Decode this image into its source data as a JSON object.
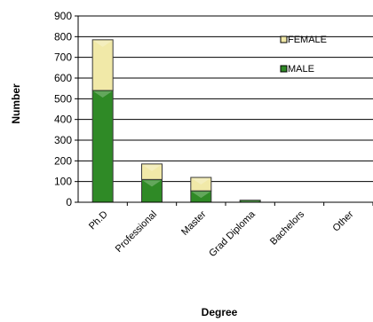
{
  "chart_data": {
    "type": "bar",
    "stacked": true,
    "categories": [
      "Ph.D",
      "Professional",
      "Master",
      "Grad Diploma",
      "Bachelors",
      "Other"
    ],
    "series": [
      {
        "name": "MALE",
        "values": [
          540,
          110,
          55,
          10,
          0,
          0
        ],
        "color": "#2f8a26"
      },
      {
        "name": "FEMALE",
        "values": [
          245,
          75,
          65,
          0,
          0,
          0
        ],
        "color": "#f1e9a8"
      }
    ],
    "xlabel": "Degree",
    "ylabel": "Number",
    "ylim": [
      0,
      900
    ],
    "yticks": [
      0,
      100,
      200,
      300,
      400,
      500,
      600,
      700,
      800,
      900
    ],
    "grid": true,
    "legend_position": "top-right"
  }
}
